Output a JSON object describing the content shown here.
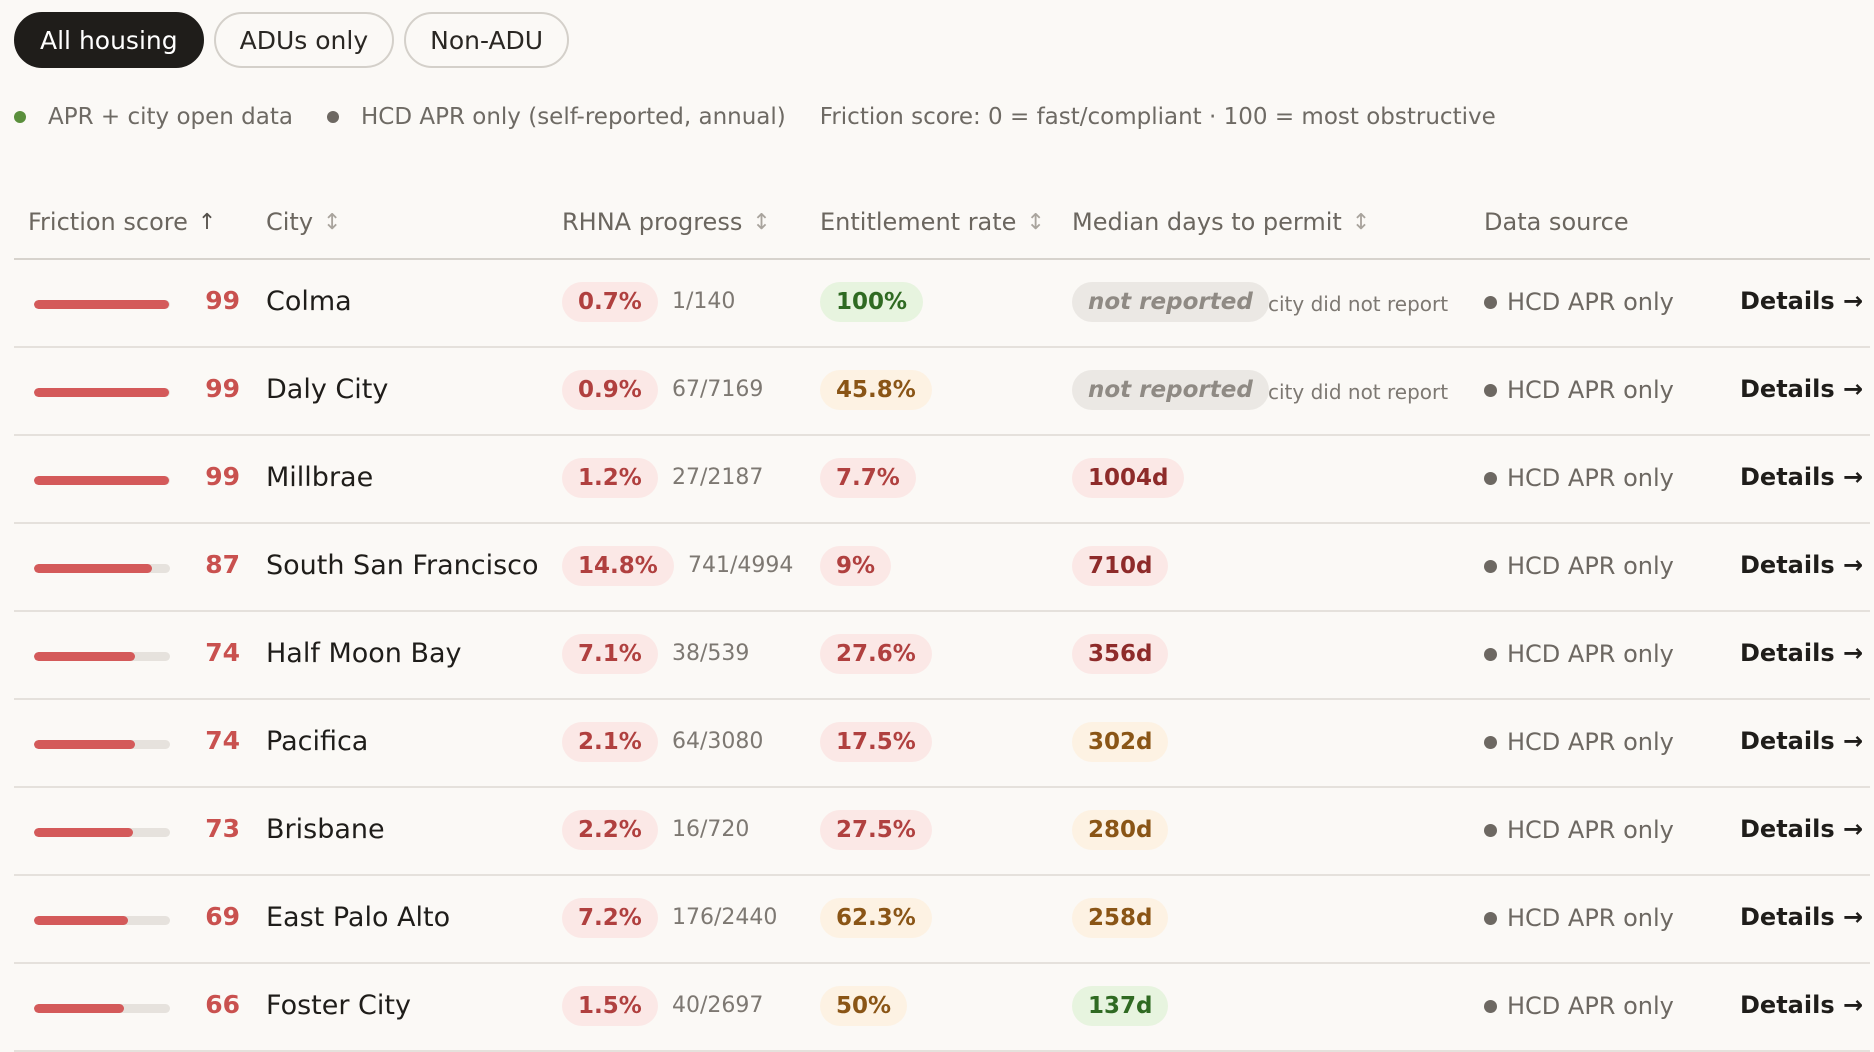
{
  "filters": [
    {
      "label": "All housing",
      "active": true
    },
    {
      "label": "ADUs only",
      "active": false
    },
    {
      "label": "Non-ADU",
      "active": false
    }
  ],
  "legend": {
    "items": [
      {
        "label": "APR + city open data",
        "color": "#5a8f3c"
      },
      {
        "label": "HCD APR only (self-reported, annual)",
        "color": "#6d6862"
      }
    ],
    "note": "Friction score: 0 = fast/compliant · 100 = most obstructive"
  },
  "columns": {
    "friction": "Friction score",
    "city": "City",
    "rhna": "RHNA progress",
    "entitlement": "Entitlement rate",
    "median": "Median days to permit",
    "source": "Data source",
    "sort_up": "↑",
    "sort_both": "↕"
  },
  "details_label": "Details →",
  "rows": [
    {
      "score": 99,
      "city": "Colma",
      "rhna_pct": "0.7%",
      "rhna_frac": "1/140",
      "ent": "100%",
      "ent_tone": "green",
      "median": "not reported",
      "median_tone": "gray",
      "median_note": "city did not report",
      "source": "HCD APR only"
    },
    {
      "score": 99,
      "city": "Daly City",
      "rhna_pct": "0.9%",
      "rhna_frac": "67/7169",
      "ent": "45.8%",
      "ent_tone": "amber",
      "median": "not reported",
      "median_tone": "gray",
      "median_note": "city did not report",
      "source": "HCD APR only"
    },
    {
      "score": 99,
      "city": "Millbrae",
      "rhna_pct": "1.2%",
      "rhna_frac": "27/2187",
      "ent": "7.7%",
      "ent_tone": "red",
      "median": "1004d",
      "median_tone": "redDark",
      "median_note": "",
      "source": "HCD APR only"
    },
    {
      "score": 87,
      "city": "South San Francisco",
      "rhna_pct": "14.8%",
      "rhna_frac": "741/4994",
      "ent": "9%",
      "ent_tone": "red",
      "median": "710d",
      "median_tone": "redDark",
      "median_note": "",
      "source": "HCD APR only"
    },
    {
      "score": 74,
      "city": "Half Moon Bay",
      "rhna_pct": "7.1%",
      "rhna_frac": "38/539",
      "ent": "27.6%",
      "ent_tone": "red",
      "median": "356d",
      "median_tone": "redDark",
      "median_note": "",
      "source": "HCD APR only"
    },
    {
      "score": 74,
      "city": "Pacifica",
      "rhna_pct": "2.1%",
      "rhna_frac": "64/3080",
      "ent": "17.5%",
      "ent_tone": "red",
      "median": "302d",
      "median_tone": "amber",
      "median_note": "",
      "source": "HCD APR only"
    },
    {
      "score": 73,
      "city": "Brisbane",
      "rhna_pct": "2.2%",
      "rhna_frac": "16/720",
      "ent": "27.5%",
      "ent_tone": "red",
      "median": "280d",
      "median_tone": "amber",
      "median_note": "",
      "source": "HCD APR only"
    },
    {
      "score": 69,
      "city": "East Palo Alto",
      "rhna_pct": "7.2%",
      "rhna_frac": "176/2440",
      "ent": "62.3%",
      "ent_tone": "amber",
      "median": "258d",
      "median_tone": "amber",
      "median_note": "",
      "source": "HCD APR only"
    },
    {
      "score": 66,
      "city": "Foster City",
      "rhna_pct": "1.5%",
      "rhna_frac": "40/2697",
      "ent": "50%",
      "ent_tone": "amber",
      "median": "137d",
      "median_tone": "green",
      "median_note": "",
      "source": "HCD APR only"
    }
  ]
}
